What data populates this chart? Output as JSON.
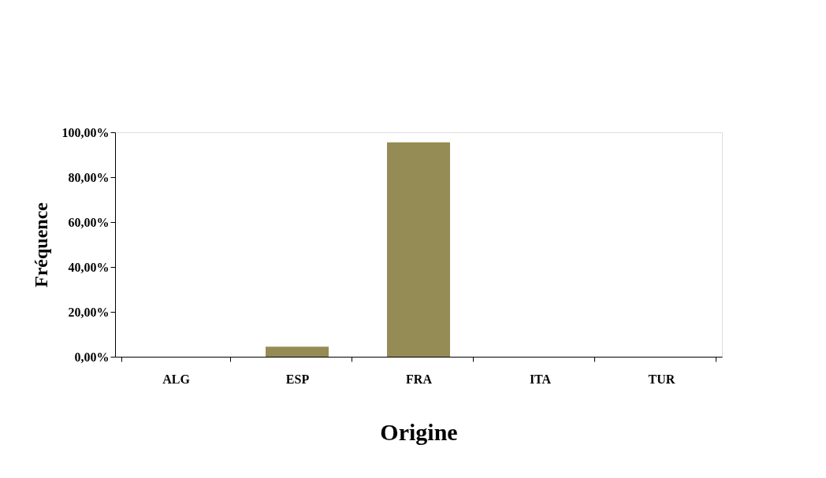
{
  "chart_data": {
    "type": "bar",
    "xlabel": "Origine",
    "ylabel": "Fréquence",
    "categories": [
      "ALG",
      "ESP",
      "FRA",
      "ITA",
      "TUR"
    ],
    "values": [
      0,
      4.5,
      95.5,
      0,
      0
    ],
    "color": "#958b55",
    "ylim": [
      0,
      100
    ],
    "yticks": [
      {
        "value": 0,
        "label": "0,00%"
      },
      {
        "value": 20,
        "label": "20,00%"
      },
      {
        "value": 40,
        "label": "40,00%"
      },
      {
        "value": 60,
        "label": "60,00%"
      },
      {
        "value": 80,
        "label": "80,00%"
      },
      {
        "value": 100,
        "label": "100,00%"
      }
    ],
    "grid": false
  }
}
